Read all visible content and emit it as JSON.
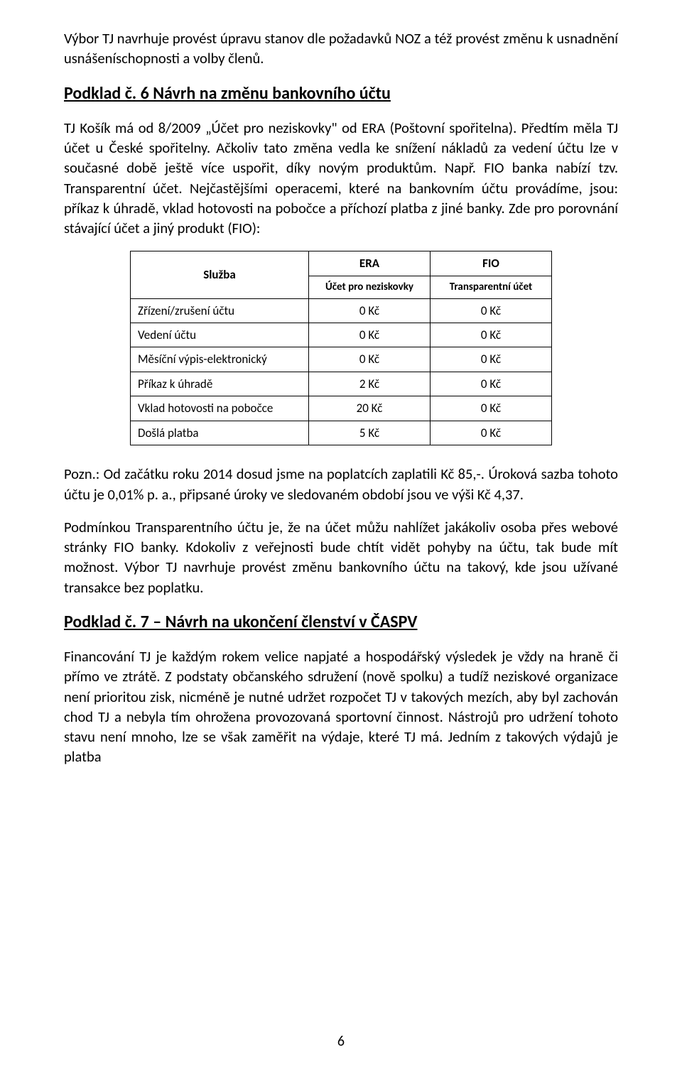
{
  "para1": "Výbor TJ navrhuje provést úpravu stanov dle požadavků NOZ a též provést změnu k usnadnění usnášeníschopnosti a volby členů.",
  "heading1": "Podklad č. 6 Návrh na změnu bankovního účtu",
  "para2": "TJ Košík má od 8/2009 „Účet pro neziskovky\" od ERA (Poštovní spořitelna). Předtím měla TJ účet u České spořitelny. Ačkoliv tato změna vedla ke snížení nákladů za vedení účtu lze v současné době ještě více uspořit, díky novým produktům. Např. FIO banka nabízí tzv. Transparentní účet. Nejčastějšími operacemi, které na bankovním účtu provádíme, jsou: příkaz k úhradě, vklad hotovosti na pobočce a příchozí platba z jiné banky. Zde pro porovnání stávající účet a jiný produkt (FIO):",
  "table": {
    "head_service": "Služba",
    "head_era_top": "ERA",
    "head_era_sub": "Účet pro neziskovky",
    "head_fio_top": "FIO",
    "head_fio_sub": "Transparentní účet",
    "rows": [
      {
        "label": "Zřízení/zrušení účtu",
        "era": "0 Kč",
        "fio": "0 Kč"
      },
      {
        "label": "Vedení účtu",
        "era": "0 Kč",
        "fio": "0 Kč"
      },
      {
        "label": "Měsíční výpis-elektronický",
        "era": "0 Kč",
        "fio": "0 Kč"
      },
      {
        "label": "Příkaz k úhradě",
        "era": "2 Kč",
        "fio": "0 Kč"
      },
      {
        "label": "Vklad hotovosti na pobočce",
        "era": "20 Kč",
        "fio": "0 Kč"
      },
      {
        "label": "Došlá platba",
        "era": "5 Kč",
        "fio": "0 Kč"
      }
    ]
  },
  "para3": "Pozn.: Od začátku roku 2014 dosud jsme na poplatcích zaplatili Kč 85,-. Úroková sazba tohoto účtu je 0,01% p. a., připsané úroky ve sledovaném období jsou ve výši Kč 4,37.",
  "para4": "Podmínkou Transparentního účtu je, že na účet můžu nahlížet jakákoliv osoba přes webové stránky FIO banky. Kdokoliv z veřejnosti bude chtít vidět pohyby na účtu, tak bude mít možnost. Výbor TJ navrhuje provést změnu bankovního účtu na takový, kde jsou užívané transakce bez poplatku.",
  "heading2": "Podklad č. 7 – Návrh na ukončení členství v ČASPV",
  "para5": "Financování TJ je každým rokem velice napjaté a hospodářský výsledek je vždy na hraně či přímo ve ztrátě. Z podstaty občanského sdružení (nově spolku) a tudíž neziskové organizace není prioritou zisk, nicméně je nutné udržet rozpočet TJ v takových mezích, aby byl zachován chod TJ a nebyla tím ohrožena provozovaná sportovní činnost. Nástrojů pro udržení tohoto stavu není mnoho, lze se však zaměřit na výdaje, které TJ má. Jedním z takových výdajů je platba",
  "page_number": "6"
}
